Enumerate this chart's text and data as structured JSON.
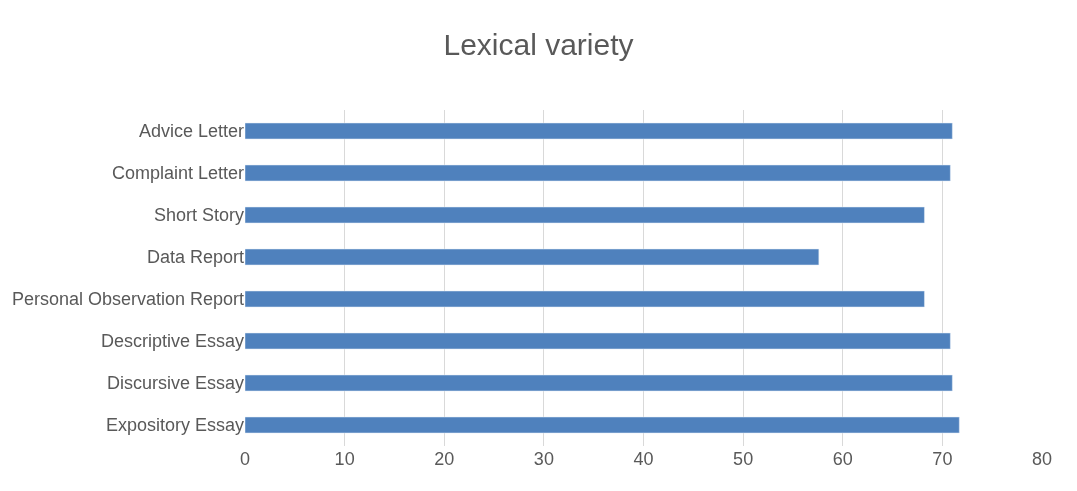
{
  "chart_data": {
    "type": "bar",
    "orientation": "horizontal",
    "title": "Lexical variety",
    "categories": [
      "Advice Letter",
      "Complaint Letter",
      "Short Story",
      "Data Report",
      "Personal Observation Report",
      "Descriptive Essay",
      "Discursive Essay",
      "Expository Essay"
    ],
    "values": [
      71.0,
      70.8,
      68.2,
      57.6,
      68.2,
      70.8,
      71.0,
      71.7
    ],
    "color": "#4f81bd",
    "xlim": [
      0,
      80
    ],
    "xticks": [
      0,
      10,
      20,
      30,
      40,
      50,
      60,
      70,
      80
    ],
    "grid": "x"
  }
}
